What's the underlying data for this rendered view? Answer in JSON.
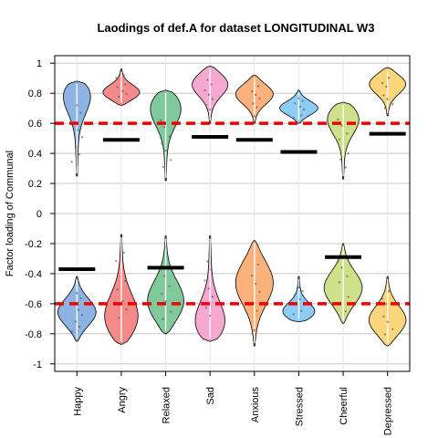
{
  "chart_data": {
    "type": "violin",
    "title": "Laodings of def.A for dataset LONGITUDINAL W3",
    "ylabel": "Factor loading of Communal",
    "xlabel": "",
    "ylim": [
      -1.05,
      1.05
    ],
    "yticks": [
      -1,
      -0.8,
      -0.6,
      -0.4,
      -0.2,
      0,
      0.2,
      0.4,
      0.6,
      0.8,
      1
    ],
    "ytick_labels": [
      "-1",
      "-0.8",
      "-0.6",
      "-0.4",
      "-0.2",
      "0",
      "0.2",
      "0.4",
      "0.6",
      "0.8",
      "1"
    ],
    "grid": true,
    "reference_lines": [
      0.6,
      -0.6
    ],
    "reference_color": "#ee0000",
    "categories": [
      "Happy",
      "Angry",
      "Relaxed",
      "Sad",
      "Anxious",
      "Stressed",
      "Cheerful",
      "Depressed"
    ],
    "colors": [
      "#8db3e2",
      "#f48a8a",
      "#7fc99a",
      "#f7a8d0",
      "#f9b27c",
      "#8dccf5",
      "#cfe08a",
      "#fbd57c"
    ],
    "positive": [
      {
        "min": 0.25,
        "max": 0.88,
        "mode": 0.84
      },
      {
        "min": 0.72,
        "max": 0.96,
        "mode": 0.8
      },
      {
        "min": 0.22,
        "max": 0.82,
        "mode": 0.74
      },
      {
        "min": 0.6,
        "max": 0.98,
        "mode": 0.87
      },
      {
        "min": 0.6,
        "max": 0.92,
        "mode": 0.8
      },
      {
        "min": 0.6,
        "max": 0.82,
        "mode": 0.7
      },
      {
        "min": 0.23,
        "max": 0.74,
        "mode": 0.66
      },
      {
        "min": 0.65,
        "max": 0.97,
        "mode": 0.87
      }
    ],
    "negative": [
      {
        "min": -0.85,
        "max": -0.42,
        "mode": -0.66
      },
      {
        "min": -0.87,
        "max": -0.14,
        "mode": -0.72
      },
      {
        "min": -0.8,
        "max": -0.15,
        "mode": -0.6
      },
      {
        "min": -0.85,
        "max": -0.15,
        "mode": -0.77
      },
      {
        "min": -0.88,
        "max": -0.18,
        "mode": -0.45
      },
      {
        "min": -0.72,
        "max": -0.42,
        "mode": -0.67
      },
      {
        "min": -0.73,
        "max": -0.2,
        "mode": -0.5
      },
      {
        "min": -0.88,
        "max": -0.42,
        "mode": -0.72
      }
    ],
    "threshold_markers": [
      {
        "category": "Happy",
        "value": -0.37
      },
      {
        "category": "Angry",
        "value": 0.49
      },
      {
        "category": "Relaxed",
        "value": -0.36
      },
      {
        "category": "Sad",
        "value": 0.51
      },
      {
        "category": "Anxious",
        "value": 0.49
      },
      {
        "category": "Stressed",
        "value": 0.41
      },
      {
        "category": "Cheerful",
        "value": -0.29
      },
      {
        "category": "Depressed",
        "value": 0.53
      }
    ]
  }
}
